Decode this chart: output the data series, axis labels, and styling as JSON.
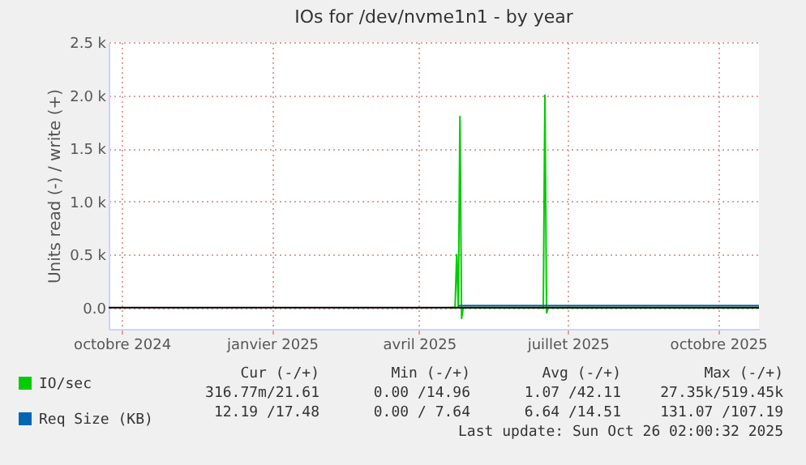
{
  "chart_data": {
    "type": "line",
    "title": "IOs for /dev/nvme1n1 - by year",
    "ylabel": "Units read (-) / write (+)",
    "xlim": [
      "2024-09-23",
      "2025-10-26"
    ],
    "xticks": [
      {
        "value": "2024-10-01",
        "label": "octobre 2024"
      },
      {
        "value": "2025-01-01",
        "label": "janvier 2025"
      },
      {
        "value": "2025-04-01",
        "label": "avril 2025"
      },
      {
        "value": "2025-07-01",
        "label": "juillet 2025"
      },
      {
        "value": "2025-10-01",
        "label": "octobre 2025"
      }
    ],
    "ylim": [
      -200,
      2500
    ],
    "yticks": [
      {
        "value": 0,
        "label": "0.0"
      },
      {
        "value": 500,
        "label": "0.5 k"
      },
      {
        "value": 1000,
        "label": "1.0 k"
      },
      {
        "value": 1500,
        "label": "1.5 k"
      },
      {
        "value": 2000,
        "label": "2.0 k"
      },
      {
        "value": 2500,
        "label": "2.5 k"
      }
    ],
    "grid": true,
    "legend": "bottom left",
    "marker": "none",
    "line_style": "solid",
    "ref_lines": [
      {
        "axis": "y",
        "value": 0,
        "color": "#000000"
      }
    ],
    "series": [
      {
        "name": "IO/sec",
        "color": "#00cc00",
        "x": [
          "2025-04-20",
          "2025-04-23",
          "2025-04-24",
          "2025-04-25",
          "2025-04-26",
          "2025-04-27",
          "2025-04-28",
          "2025-05-15",
          "2025-06-16",
          "2025-06-17",
          "2025-06-18",
          "2025-06-19",
          "2025-08-01",
          "2025-10-26"
        ],
        "values": [
          0,
          0,
          500,
          0,
          1800,
          -100,
          0,
          0,
          0,
          2000,
          -50,
          0,
          0,
          0
        ]
      },
      {
        "name": "Req Size (KB)",
        "color": "#0066b3",
        "x": [
          "2025-04-25",
          "2025-06-01",
          "2025-08-01",
          "2025-10-26"
        ],
        "values": [
          20,
          20,
          20,
          20
        ]
      }
    ],
    "annotations": [
      "Cur (-/+)",
      "Min (-/+)",
      "Avg (-/+)",
      "Max (-/+)",
      "316.77m/21.61",
      "0.00 /14.96",
      "1.07 /42.11",
      "27.35k/519.45k",
      "12.19 /17.48",
      "0.00 / 7.64",
      "6.64 /14.51",
      "131.07 /107.19",
      "Last update: Sun Oct 26 02:00:32 2025"
    ]
  }
}
